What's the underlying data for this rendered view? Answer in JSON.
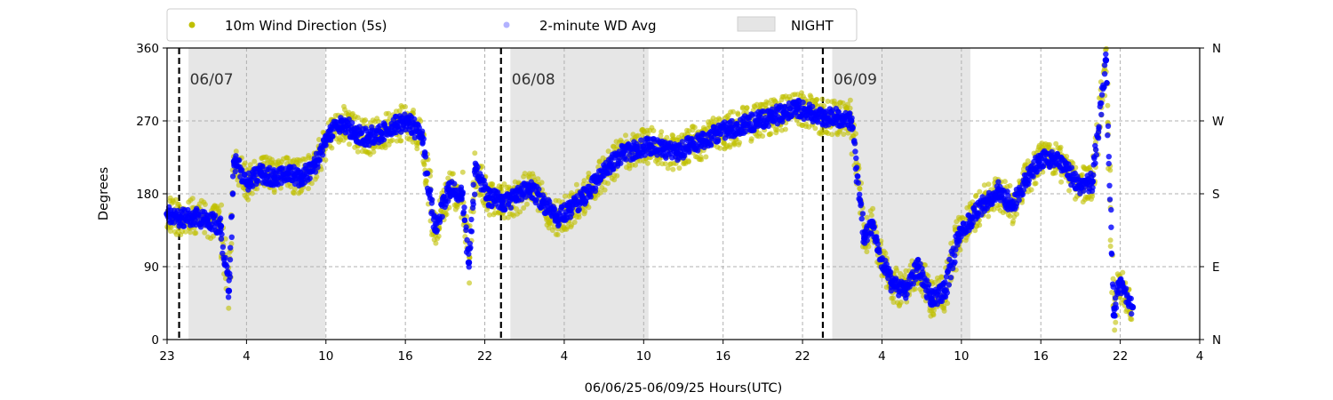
{
  "chart_data": {
    "type": "scatter",
    "title": "",
    "xlabel": "06/06/25-06/09/25  Hours(UTC)",
    "ylabel": "Degrees",
    "x_unit": "hours since 06/06 23:00 UTC",
    "xlim": [
      0,
      77
    ],
    "ylim": [
      0,
      360
    ],
    "x_tick_labels": [
      "23",
      "4",
      "10",
      "16",
      "22",
      "4",
      "10",
      "16",
      "22",
      "4",
      "10",
      "16",
      "22",
      "4"
    ],
    "y_ticks": [
      0,
      90,
      180,
      270,
      360
    ],
    "y_tick_labels": [
      "0",
      "90",
      "180",
      "270",
      "360"
    ],
    "y2_tick_labels": [
      "N",
      "E",
      "S",
      "W",
      "N"
    ],
    "grid": true,
    "legend_position": "top-left",
    "legend": [
      {
        "label": "10m Wind Direction (5s)",
        "kind": "marker",
        "color": "#bfbf00"
      },
      {
        "label": "2-minute WD Avg",
        "kind": "marker",
        "color": "#0000ff"
      },
      {
        "label": "NIGHT",
        "kind": "patch",
        "color": "#e5e5e5"
      }
    ],
    "night_periods": [
      [
        1.6,
        11.8
      ],
      [
        25.6,
        35.9
      ],
      [
        49.6,
        59.9
      ]
    ],
    "day_boundaries": [
      {
        "x": 0.9,
        "label": "06/07"
      },
      {
        "x": 24.9,
        "label": "06/08"
      },
      {
        "x": 48.9,
        "label": "06/09"
      }
    ],
    "series": [
      {
        "name": "10m Wind Direction (5s)",
        "color": "#bfbf00",
        "x": [
          0,
          1,
          2,
          3,
          4,
          4.6,
          5,
          6,
          7,
          8,
          9,
          10,
          11,
          12,
          13,
          14,
          15,
          16,
          17,
          18,
          19,
          20,
          21,
          22,
          22.5,
          23,
          24,
          25,
          26,
          27,
          28,
          29,
          30,
          31,
          32,
          33,
          34,
          35,
          36,
          37,
          38,
          39,
          40,
          41,
          42,
          43,
          44,
          45,
          46,
          47,
          48,
          49,
          50,
          51,
          52,
          52.6,
          53,
          54,
          55,
          56,
          57,
          58,
          59,
          60,
          61,
          62,
          63,
          64,
          65,
          66,
          67,
          68,
          69,
          70,
          70.6,
          71,
          72
        ],
        "y": [
          155,
          150,
          152,
          148,
          140,
          60,
          220,
          195,
          205,
          200,
          205,
          200,
          215,
          250,
          270,
          255,
          250,
          255,
          265,
          270,
          250,
          135,
          185,
          180,
          95,
          210,
          175,
          170,
          175,
          190,
          170,
          150,
          160,
          175,
          195,
          215,
          230,
          235,
          240,
          235,
          230,
          240,
          245,
          255,
          260,
          265,
          270,
          275,
          280,
          285,
          280,
          275,
          275,
          270,
          125,
          140,
          110,
          70,
          60,
          90,
          50,
          60,
          130,
          150,
          170,
          185,
          165,
          195,
          220,
          225,
          210,
          190,
          195,
          345,
          30,
          70,
          40
        ]
      },
      {
        "name": "2-minute WD Avg",
        "color": "#0000ff",
        "x": [
          0,
          1,
          2,
          3,
          4,
          4.6,
          5,
          6,
          7,
          8,
          9,
          10,
          11,
          12,
          13,
          14,
          15,
          16,
          17,
          18,
          19,
          20,
          21,
          22,
          22.5,
          23,
          24,
          25,
          26,
          27,
          28,
          29,
          30,
          31,
          32,
          33,
          34,
          35,
          36,
          37,
          38,
          39,
          40,
          41,
          42,
          43,
          44,
          45,
          46,
          47,
          48,
          49,
          50,
          51,
          52,
          52.6,
          53,
          54,
          55,
          56,
          57,
          58,
          59,
          60,
          61,
          62,
          63,
          64,
          65,
          66,
          67,
          68,
          69,
          70,
          70.6,
          71,
          72
        ],
        "y": [
          155,
          150,
          152,
          148,
          140,
          60,
          220,
          195,
          205,
          200,
          205,
          200,
          215,
          250,
          270,
          255,
          250,
          255,
          265,
          270,
          250,
          135,
          185,
          180,
          95,
          210,
          175,
          170,
          175,
          190,
          170,
          150,
          160,
          175,
          195,
          215,
          230,
          235,
          240,
          235,
          230,
          240,
          245,
          255,
          260,
          265,
          270,
          275,
          280,
          285,
          280,
          275,
          275,
          270,
          125,
          140,
          110,
          70,
          60,
          90,
          50,
          60,
          130,
          150,
          170,
          185,
          165,
          195,
          220,
          225,
          210,
          190,
          195,
          345,
          30,
          70,
          40
        ]
      }
    ]
  }
}
